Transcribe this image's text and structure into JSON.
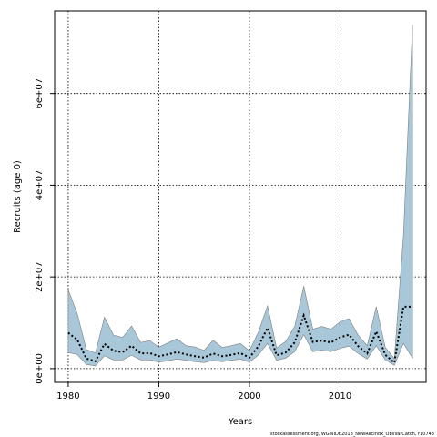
{
  "chart_data": {
    "type": "area",
    "xlabel": "Years",
    "ylabel": "Recruits (age 0)",
    "xlim": [
      1978.5,
      2019.5
    ],
    "ylim": [
      -3000000,
      78000000
    ],
    "x_ticks": [
      1980,
      1990,
      2000,
      2010
    ],
    "x_tick_labels": [
      "1980",
      "1990",
      "2000",
      "2010"
    ],
    "y_ticks": [
      0,
      20000000,
      40000000,
      60000000
    ],
    "y_tick_labels": [
      "0e+00",
      "2e+07",
      "4e+07",
      "6e+07"
    ],
    "grid": true,
    "footer": "stockassessment.org, WGWIDE2018_NewRecIndx_ObsVarCatch, r10743",
    "colors": {
      "band_fill": "#a8c7d8",
      "band_edge": "#808080",
      "estimate_line": "#000000"
    },
    "x": [
      1980,
      1981,
      1982,
      1983,
      1984,
      1985,
      1986,
      1987,
      1988,
      1989,
      1990,
      1991,
      1992,
      1993,
      1994,
      1995,
      1996,
      1997,
      1998,
      1999,
      2000,
      2001,
      2002,
      2003,
      2004,
      2005,
      2006,
      2007,
      2008,
      2009,
      2010,
      2011,
      2012,
      2013,
      2014,
      2015,
      2016,
      2017,
      2018
    ],
    "series": [
      {
        "name": "estimate",
        "values": [
          7800000,
          6300000,
          2200000,
          1600000,
          5400000,
          3900000,
          3600000,
          5000000,
          3300000,
          3400000,
          2700000,
          3100000,
          3600000,
          3100000,
          2700000,
          2400000,
          3300000,
          2700000,
          3000000,
          3400000,
          2400000,
          4900000,
          8900000,
          2900000,
          3500000,
          5700000,
          11600000,
          5800000,
          6100000,
          5700000,
          6800000,
          7400000,
          4900000,
          3300000,
          8100000,
          3000000,
          1300000,
          13500000,
          13500000
        ]
      },
      {
        "name": "lower",
        "values": [
          3500000,
          3100000,
          900000,
          600000,
          2800000,
          1900000,
          1900000,
          2900000,
          1900000,
          1900000,
          1400000,
          1700000,
          2100000,
          1800000,
          1500000,
          1300000,
          1800000,
          1500000,
          1800000,
          2100000,
          1400000,
          3000000,
          5500000,
          1800000,
          2300000,
          3700000,
          7400000,
          3700000,
          4000000,
          3700000,
          4400000,
          4900000,
          3300000,
          2100000,
          5000000,
          1900000,
          700000,
          5500000,
          2300000
        ]
      },
      {
        "name": "upper",
        "values": [
          17200000,
          12000000,
          4200000,
          3400000,
          11200000,
          7300000,
          6800000,
          9300000,
          5700000,
          6100000,
          4700000,
          5600000,
          6500000,
          5000000,
          4700000,
          4000000,
          6200000,
          4600000,
          5000000,
          5500000,
          3900000,
          8000000,
          13700000,
          4500000,
          5900000,
          9200000,
          18000000,
          8600000,
          9200000,
          8600000,
          10200000,
          10900000,
          7300000,
          5000000,
          13500000,
          4600000,
          2200000,
          29000000,
          75000000
        ]
      }
    ]
  }
}
